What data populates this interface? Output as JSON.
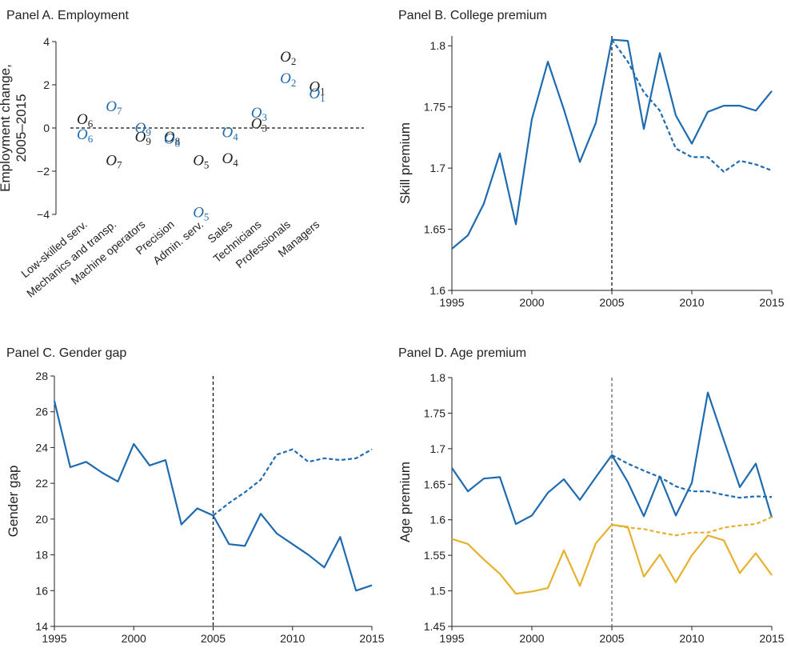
{
  "chart_data": [
    {
      "type": "label-scatter",
      "title": "Panel A. Employment",
      "ylabel": [
        "Employment change,",
        "2005–2015"
      ],
      "categories": [
        "Low-skilled serv.",
        "Mechanics and transp.",
        "Machine operators",
        "Precision",
        "Admin. serv.",
        "Sales",
        "Technicians",
        "Professionals",
        "Managers"
      ],
      "series": [
        {
          "color": "#222222",
          "labels": [
            "O6",
            "O7",
            "O9",
            "O8",
            "O5",
            "O4",
            "O3",
            "O2",
            "O1"
          ],
          "values": [
            0.4,
            -1.5,
            -0.4,
            -0.4,
            -1.5,
            -1.4,
            0.2,
            3.3,
            1.9
          ]
        },
        {
          "color": "#1f6bb0",
          "labels": [
            "O6",
            "O7",
            "O9",
            "O8",
            "O5",
            "O4",
            "O3",
            "O2",
            "O1"
          ],
          "values": [
            -0.3,
            1.0,
            0.0,
            -0.5,
            -3.9,
            -0.2,
            0.7,
            2.3,
            1.6
          ]
        }
      ],
      "ylim": [
        -4,
        4
      ],
      "yticks": [
        {
          "value": -4,
          "label": "−4"
        },
        {
          "value": -2,
          "label": "−2"
        },
        0,
        2,
        4
      ],
      "hline": 0
    },
    {
      "type": "line",
      "title": "Panel B. College premium",
      "ylabel": [
        "Skill premium"
      ],
      "x": [
        1995,
        1996,
        1997,
        1998,
        1999,
        2000,
        2001,
        2002,
        2003,
        2004,
        2005,
        2006,
        2007,
        2008,
        2009,
        2010,
        2011,
        2012,
        2013,
        2014,
        2015
      ],
      "series": [
        {
          "color": "#1f6bb0",
          "dashed": false,
          "values": [
            1.634,
            1.645,
            1.671,
            1.712,
            1.654,
            1.74,
            1.787,
            1.748,
            1.705,
            1.737,
            1.805,
            1.804,
            1.732,
            1.794,
            1.743,
            1.72,
            1.746,
            1.751,
            1.751,
            1.747,
            1.763
          ]
        },
        {
          "color": "#1f6bb0",
          "dashed": true,
          "values": [
            null,
            null,
            null,
            null,
            null,
            null,
            null,
            null,
            null,
            null,
            1.805,
            1.787,
            1.762,
            1.747,
            1.716,
            1.709,
            1.709,
            1.697,
            1.706,
            1.703,
            1.698
          ]
        }
      ],
      "xlim": [
        1995,
        2015
      ],
      "xticks": [
        1995,
        2000,
        2005,
        2010,
        2015
      ],
      "ylim": [
        1.6,
        1.808
      ],
      "yticks": [
        1.6,
        1.65,
        1.7,
        1.75,
        1.8
      ],
      "vline": 2005,
      "vline_color": "#111111"
    },
    {
      "type": "line",
      "title": "Panel C. Gender gap",
      "ylabel": [
        "Gender gap"
      ],
      "x": [
        1995,
        1996,
        1997,
        1998,
        1999,
        2000,
        2001,
        2002,
        2003,
        2004,
        2005,
        2006,
        2007,
        2008,
        2009,
        2010,
        2011,
        2012,
        2013,
        2014,
        2015
      ],
      "series": [
        {
          "color": "#1f6bb0",
          "dashed": false,
          "values": [
            26.6,
            22.9,
            23.2,
            22.6,
            22.1,
            24.2,
            23.0,
            23.3,
            19.7,
            20.6,
            20.2,
            18.6,
            18.5,
            20.3,
            19.2,
            18.6,
            18.0,
            17.3,
            19.0,
            16.0,
            16.3
          ]
        },
        {
          "color": "#1f6bb0",
          "dashed": true,
          "values": [
            null,
            null,
            null,
            null,
            null,
            null,
            null,
            null,
            null,
            null,
            20.2,
            20.9,
            21.5,
            22.2,
            23.6,
            23.9,
            23.2,
            23.4,
            23.3,
            23.4,
            23.9
          ]
        }
      ],
      "xlim": [
        1995,
        2015
      ],
      "xticks": [
        1995,
        2000,
        2005,
        2010,
        2015
      ],
      "ylim": [
        14,
        28
      ],
      "yticks": [
        14,
        16,
        18,
        20,
        22,
        24,
        26,
        28
      ],
      "vline": 2005,
      "vline_color": "#111111"
    },
    {
      "type": "line",
      "title": "Panel D. Age premium",
      "ylabel": [
        "Age premium"
      ],
      "x": [
        1995,
        1996,
        1997,
        1998,
        1999,
        2000,
        2001,
        2002,
        2003,
        2004,
        2005,
        2006,
        2007,
        2008,
        2009,
        2010,
        2011,
        2012,
        2013,
        2014,
        2015
      ],
      "series": [
        {
          "color": "#1f6bb0",
          "dashed": false,
          "values": [
            1.673,
            1.64,
            1.658,
            1.66,
            1.594,
            1.606,
            1.638,
            1.657,
            1.628,
            1.66,
            1.691,
            1.653,
            1.605,
            1.661,
            1.606,
            1.652,
            1.779,
            1.712,
            1.646,
            1.679,
            1.603
          ]
        },
        {
          "color": "#1f6bb0",
          "dashed": true,
          "values": [
            null,
            null,
            null,
            null,
            null,
            null,
            null,
            null,
            null,
            null,
            1.691,
            1.679,
            1.669,
            1.66,
            1.647,
            1.64,
            1.64,
            1.635,
            1.631,
            1.633,
            1.632
          ]
        },
        {
          "color": "#e6b12e",
          "dashed": false,
          "values": [
            1.573,
            1.566,
            1.544,
            1.524,
            1.496,
            1.499,
            1.504,
            1.557,
            1.507,
            1.567,
            1.593,
            1.59,
            1.52,
            1.551,
            1.512,
            1.55,
            1.578,
            1.571,
            1.525,
            1.553,
            1.522
          ]
        },
        {
          "color": "#e6b12e",
          "dashed": true,
          "values": [
            null,
            null,
            null,
            null,
            null,
            null,
            null,
            null,
            null,
            null,
            1.593,
            1.589,
            1.587,
            1.582,
            1.578,
            1.582,
            1.582,
            1.589,
            1.592,
            1.594,
            1.604
          ]
        }
      ],
      "xlim": [
        1995,
        2015
      ],
      "xticks": [
        1995,
        2000,
        2005,
        2010,
        2015
      ],
      "ylim": [
        1.45,
        1.8
      ],
      "yticks": [
        1.45,
        1.5,
        1.55,
        1.6,
        1.65,
        1.7,
        1.75,
        1.8
      ],
      "vline": 2005,
      "vline_color": "#666666"
    }
  ]
}
